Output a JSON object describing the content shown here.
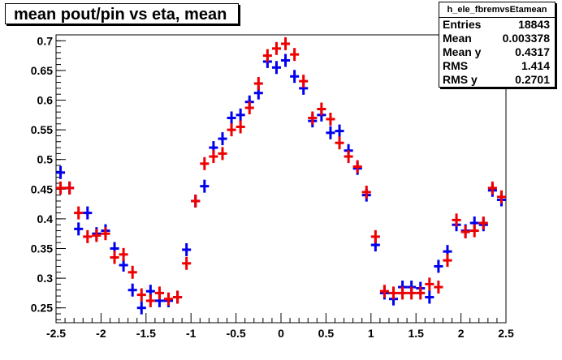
{
  "chart_data": {
    "type": "scatter",
    "title": "mean pout/pin vs eta, mean",
    "xlabel": "",
    "ylabel": "",
    "xlim": [
      -2.5,
      2.5
    ],
    "ylim": [
      0.225,
      0.71
    ],
    "x_ticks": [
      "-2.5",
      "-2",
      "-1.5",
      "-1",
      "-0.5",
      "0",
      "0.5",
      "1",
      "1.5",
      "2",
      "2.5"
    ],
    "y_ticks": [
      "0.25",
      "0.3",
      "0.35",
      "0.4",
      "0.45",
      "0.5",
      "0.55",
      "0.6",
      "0.65",
      "0.7"
    ],
    "x_tick_values": [
      -2.5,
      -2,
      -1.5,
      -1,
      -0.5,
      0,
      0.5,
      1,
      1.5,
      2,
      2.5
    ],
    "y_tick_values": [
      0.25,
      0.3,
      0.35,
      0.4,
      0.45,
      0.5,
      0.55,
      0.6,
      0.65,
      0.7
    ],
    "grid": false,
    "x_bin_centers": [
      -2.45,
      -2.35,
      -2.25,
      -2.15,
      -2.05,
      -1.95,
      -1.85,
      -1.75,
      -1.65,
      -1.55,
      -1.45,
      -1.35,
      -1.25,
      -1.15,
      -1.05,
      -0.95,
      -0.85,
      -0.75,
      -0.65,
      -0.55,
      -0.45,
      -0.35,
      -0.25,
      -0.15,
      -0.05,
      0.05,
      0.15,
      0.25,
      0.35,
      0.45,
      0.55,
      0.65,
      0.75,
      0.85,
      0.95,
      1.05,
      1.15,
      1.25,
      1.35,
      1.45,
      1.55,
      1.65,
      1.75,
      1.85,
      1.95,
      2.05,
      2.15,
      2.25,
      2.35,
      2.45
    ],
    "series": [
      {
        "color": "#0000ee",
        "values": [
          0.478,
          0.452,
          0.383,
          0.41,
          0.375,
          0.38,
          0.35,
          0.322,
          0.28,
          0.25,
          0.278,
          0.262,
          0.262,
          0.268,
          0.348,
          0.43,
          0.455,
          0.52,
          0.535,
          0.57,
          0.575,
          0.597,
          0.612,
          0.665,
          0.655,
          0.667,
          0.64,
          0.62,
          0.565,
          0.575,
          0.545,
          0.548,
          0.515,
          0.485,
          0.44,
          0.356,
          0.275,
          0.265,
          0.285,
          0.285,
          0.283,
          0.268,
          0.32,
          0.345,
          0.39,
          0.38,
          0.393,
          0.39,
          0.448,
          0.432
        ]
      },
      {
        "color": "#ee0000",
        "values": [
          0.452,
          0.452,
          0.41,
          0.37,
          0.372,
          0.375,
          0.335,
          0.34,
          0.31,
          0.272,
          0.262,
          0.275,
          0.265,
          0.268,
          0.325,
          0.43,
          0.493,
          0.505,
          0.51,
          0.55,
          0.555,
          0.587,
          0.628,
          0.675,
          0.687,
          0.695,
          0.677,
          0.632,
          0.57,
          0.585,
          0.568,
          0.528,
          0.505,
          0.488,
          0.445,
          0.37,
          0.278,
          0.275,
          0.275,
          0.275,
          0.275,
          0.29,
          0.285,
          0.33,
          0.398,
          0.378,
          0.38,
          0.393,
          0.452,
          0.437
        ]
      }
    ],
    "x_error": 0.05,
    "stats": {
      "name": "h_ele_fbremvsEtamean",
      "rows": [
        {
          "label": "Entries",
          "value": "18843"
        },
        {
          "label": "Mean",
          "value": "0.003378"
        },
        {
          "label": "Mean y",
          "value": "0.4317"
        },
        {
          "label": "RMS",
          "value": "1.414"
        },
        {
          "label": "RMS y",
          "value": "0.2701"
        }
      ]
    }
  }
}
